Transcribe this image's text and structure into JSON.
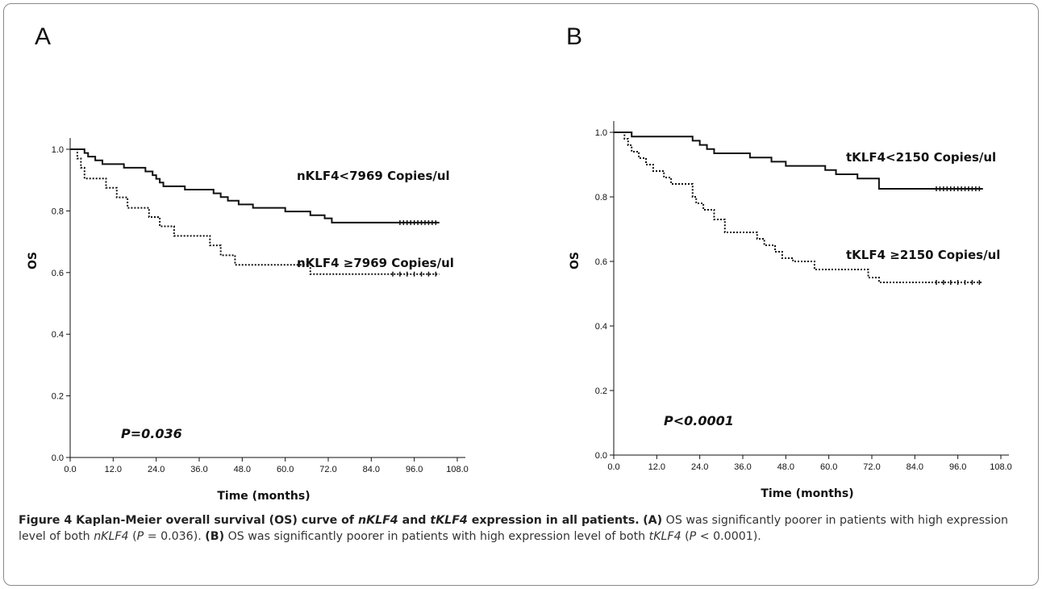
{
  "panels": [
    {
      "letter": "A",
      "chart_data": {
        "type": "line",
        "subtype": "kaplan-meier",
        "xlabel": "Time (months)",
        "ylabel": "OS",
        "xlim": [
          0,
          108
        ],
        "ylim": [
          0,
          1
        ],
        "xticks": [
          "0.0",
          "12.0",
          "24.0",
          "36.0",
          "48.0",
          "60.0",
          "72.0",
          "84.0",
          "96.0",
          "108.0"
        ],
        "yticks": [
          "0.0",
          "0.2",
          "0.4",
          "0.6",
          "0.8",
          "1.0"
        ],
        "annotation": "P=0.036",
        "series": [
          {
            "name": "nKLF4<7969 Copies/ul",
            "style": "solid",
            "x": [
              0,
              4,
              5,
              7,
              9,
              15,
              21,
              23,
              24,
              25,
              26,
              32,
              40,
              42,
              44,
              47,
              51,
              60,
              67,
              71,
              73,
              103
            ],
            "y": [
              1.0,
              0.988,
              0.976,
              0.964,
              0.952,
              0.94,
              0.928,
              0.916,
              0.904,
              0.892,
              0.88,
              0.869,
              0.857,
              0.845,
              0.833,
              0.821,
              0.81,
              0.798,
              0.786,
              0.776,
              0.762,
              0.762
            ],
            "censored": [
              92,
              93,
              94,
              95,
              96,
              97,
              98,
              99,
              100,
              101,
              102
            ]
          },
          {
            "name": "nKLF4 ≥7969 Copies/ul",
            "style": "dotted",
            "x": [
              0,
              2,
              3,
              4,
              10,
              13,
              16,
              22,
              25,
              29,
              39,
              42,
              46,
              67,
              103
            ],
            "y": [
              1.0,
              0.97,
              0.94,
              0.905,
              0.875,
              0.844,
              0.81,
              0.78,
              0.75,
              0.719,
              0.688,
              0.656,
              0.625,
              0.595,
              0.595
            ],
            "censored": [
              90,
              92,
              94,
              96,
              98,
              100,
              102
            ]
          }
        ]
      }
    },
    {
      "letter": "B",
      "chart_data": {
        "type": "line",
        "subtype": "kaplan-meier",
        "xlabel": "Time (months)",
        "ylabel": "OS",
        "xlim": [
          0,
          108
        ],
        "ylim": [
          0,
          1
        ],
        "xticks": [
          "0.0",
          "12.0",
          "24.0",
          "36.0",
          "48.0",
          "60.0",
          "72.0",
          "84.0",
          "96.0",
          "108.0"
        ],
        "yticks": [
          "0.0",
          "0.2",
          "0.4",
          "0.6",
          "0.8",
          "1.0"
        ],
        "annotation": "P<0.0001",
        "series": [
          {
            "name": "tKLF4<2150 Copies/ul",
            "style": "solid",
            "x": [
              0,
              5,
              22,
              24,
              26,
              28,
              38,
              44,
              48,
              59,
              62,
              68,
              74,
              103
            ],
            "y": [
              1.0,
              0.987,
              0.974,
              0.961,
              0.948,
              0.935,
              0.922,
              0.909,
              0.896,
              0.883,
              0.87,
              0.857,
              0.825,
              0.825
            ],
            "censored": [
              90,
              91,
              92,
              93,
              94,
              95,
              96,
              97,
              98,
              99,
              100,
              101,
              102
            ]
          },
          {
            "name": "tKLF4 ≥2150 Copies/ul",
            "style": "dotted",
            "x": [
              0,
              3,
              4,
              5,
              7,
              9,
              11,
              14,
              16,
              22,
              23,
              25,
              28,
              31,
              40,
              42,
              45,
              47,
              50,
              56,
              71,
              74,
              103
            ],
            "y": [
              1.0,
              0.98,
              0.96,
              0.94,
              0.92,
              0.9,
              0.88,
              0.86,
              0.84,
              0.8,
              0.78,
              0.76,
              0.73,
              0.69,
              0.67,
              0.65,
              0.63,
              0.61,
              0.6,
              0.575,
              0.55,
              0.535,
              0.535
            ],
            "censored": [
              90,
              92,
              94,
              96,
              98,
              100,
              102
            ]
          }
        ]
      }
    }
  ],
  "caption": {
    "title_prefix": "Figure 4 Kaplan-Meier overall survival (OS) curve of ",
    "title_term1": "nKLF4",
    "title_mid": " and ",
    "title_term2": "tKLF4",
    "title_suffix": " expression in all patients.",
    "a_label": "(A)",
    "a_text": " OS was significantly poorer in patients with high expression level of both ",
    "a_term": "nKLF4",
    "a_open": " (",
    "a_p": "P",
    "a_pval": " = 0.036).",
    "b_label": "(B)",
    "b_text": " OS was significantly poorer in patients with high expression level of both ",
    "b_term": "tKLF4",
    "b_open": " (",
    "b_p": "P",
    "b_pval": " < 0.0001)."
  }
}
